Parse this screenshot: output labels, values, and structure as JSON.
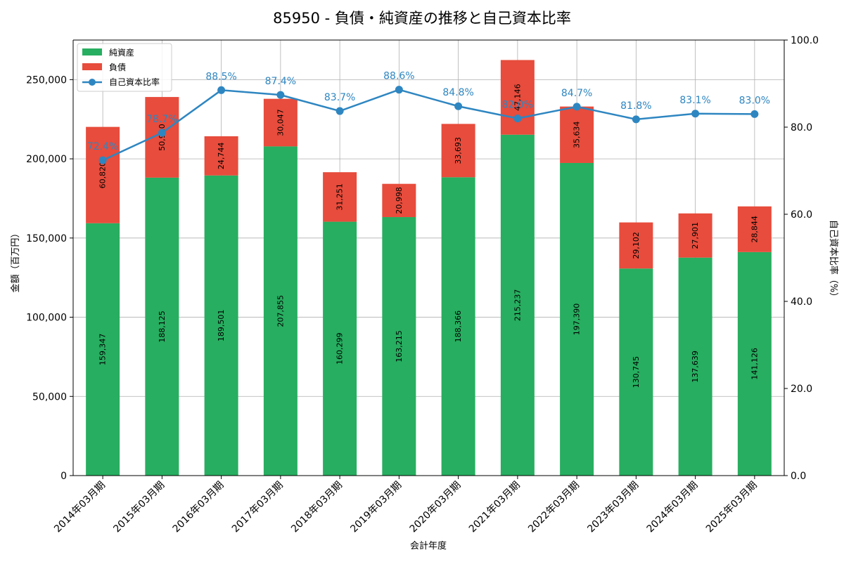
{
  "chart_data": {
    "type": "bar",
    "stacked": true,
    "title": "85950 - 負債・純資産の推移と自己資本比率",
    "xlabel": "会計年度",
    "ylabel": "金額（百万円）",
    "y2label": "自己資本比率（%）",
    "ylim": [
      0,
      275000
    ],
    "y2lim": [
      0,
      100
    ],
    "yticks": [
      "0",
      "50,000",
      "100,000",
      "150,000",
      "200,000",
      "250,000"
    ],
    "yticks_values": [
      0,
      50000,
      100000,
      150000,
      200000,
      250000
    ],
    "y2ticks": [
      "0.0",
      "20.0",
      "40.0",
      "60.0",
      "80.0",
      "100.0"
    ],
    "y2ticks_values": [
      0,
      20,
      40,
      60,
      80,
      100
    ],
    "grid": true,
    "legend_position": "top-left",
    "categories": [
      "2014年03月期",
      "2015年03月期",
      "2016年03月期",
      "2017年03月期",
      "2018年03月期",
      "2019年03月期",
      "2020年03月期",
      "2021年03月期",
      "2022年03月期",
      "2023年03月期",
      "2024年03月期",
      "2025年03月期"
    ],
    "series": [
      {
        "name": "純資産",
        "color": "#27ae60",
        "values": [
          159347,
          188125,
          189501,
          207855,
          160299,
          163215,
          188366,
          215237,
          197390,
          130745,
          137639,
          141126
        ],
        "labels": [
          "159,347",
          "188,125",
          "189,501",
          "207,855",
          "160,299",
          "163,215",
          "188,366",
          "215,237",
          "197,390",
          "130,745",
          "137,639",
          "141,126"
        ]
      },
      {
        "name": "負債",
        "color": "#e74c3c",
        "values": [
          60820,
          50910,
          24744,
          30047,
          31251,
          20998,
          33693,
          47146,
          35634,
          29102,
          27901,
          28844
        ],
        "labels": [
          "60,820",
          "50,910",
          "24,744",
          "30,047",
          "31,251",
          "20,998",
          "33,693",
          "47,146",
          "35,634",
          "29,102",
          "27,901",
          "28,844"
        ]
      },
      {
        "name": "自己資本比率",
        "color": "#2e86c1",
        "axis": "right",
        "values": [
          72.4,
          78.7,
          88.5,
          87.4,
          83.7,
          88.6,
          84.8,
          82.0,
          84.7,
          81.8,
          83.1,
          83.0
        ],
        "labels": [
          "72.4%",
          "78.7%",
          "88.5%",
          "87.4%",
          "83.7%",
          "88.6%",
          "84.8%",
          "82.0%",
          "84.7%",
          "81.8%",
          "83.1%",
          "83.0%"
        ]
      }
    ]
  }
}
